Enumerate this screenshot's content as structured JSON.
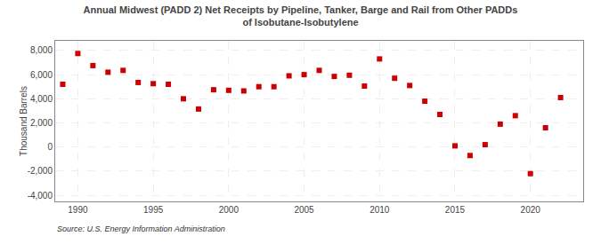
{
  "chart_data": {
    "type": "scatter",
    "title": "Annual Midwest (PADD 2) Net Receipts by Pipeline, Tanker, Barge and Rail from Other PADDs\nof Isobutane-Isobutylene",
    "ylabel": "Thousand Barrels",
    "annotations": [
      "Source: U.S. Energy Information Administration"
    ],
    "x": [
      1989,
      1990,
      1991,
      1992,
      1993,
      1994,
      1995,
      1996,
      1997,
      1998,
      1999,
      2000,
      2001,
      2002,
      2003,
      2004,
      2005,
      2006,
      2007,
      2008,
      2009,
      2010,
      2011,
      2012,
      2013,
      2014,
      2015,
      2016,
      2017,
      2018,
      2019,
      2020,
      2021,
      2022
    ],
    "values": [
      5200,
      7750,
      6750,
      6200,
      6350,
      5350,
      5250,
      5200,
      4000,
      3150,
      4750,
      4700,
      4650,
      5000,
      5000,
      5900,
      6000,
      6350,
      5850,
      5950,
      5050,
      7300,
      5700,
      5100,
      3800,
      2700,
      100,
      -700,
      200,
      1900,
      2600,
      -2200,
      1600,
      4100
    ],
    "color": "#cc0000",
    "marker": "square",
    "grid": true,
    "xlim": [
      1988.5,
      2023.5
    ],
    "xticks": [
      1990,
      1995,
      2000,
      2005,
      2010,
      2015,
      2020
    ],
    "ylim": [
      -4500,
      8800
    ],
    "yticks": [
      {
        "value": -4000,
        "label": "-4,000"
      },
      {
        "value": -2000,
        "label": "-2,000"
      },
      0,
      {
        "value": 2000,
        "label": "2,000"
      },
      {
        "value": 4000,
        "label": "4,000"
      },
      {
        "value": 6000,
        "label": "6,000"
      },
      {
        "value": 8000,
        "label": "8,000"
      }
    ]
  }
}
